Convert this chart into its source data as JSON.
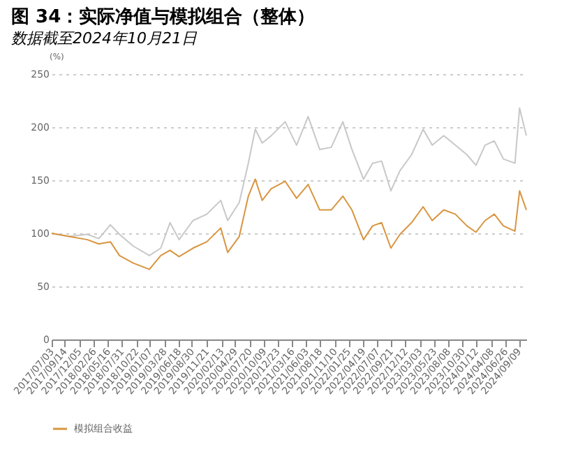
{
  "chart_data": {
    "type": "line",
    "title": "图 34：实际净值与模拟组合（整体）",
    "ylabel": "(%)",
    "x": [
      "2017-07-03",
      "2017-10-08",
      "2018-01-19",
      "2018-03-25",
      "2018-05-29",
      "2018-07-19",
      "2018-10-04",
      "2019-01-03",
      "2019-03-08",
      "2019-04-29",
      "2019-06-19",
      "2019-09-05",
      "2019-11-22",
      "2020-02-08",
      "2020-03-18",
      "2020-05-22",
      "2020-07-12",
      "2020-08-20",
      "2020-09-28",
      "2020-11-18",
      "2021-02-04",
      "2021-04-09",
      "2021-06-13",
      "2021-08-17",
      "2021-10-21",
      "2021-12-25",
      "2022-02-14",
      "2022-04-20",
      "2022-06-10",
      "2022-07-31",
      "2022-09-21",
      "2022-11-11",
      "2023-01-15",
      "2023-03-21",
      "2023-05-11",
      "2023-07-15",
      "2023-09-18",
      "2023-11-22",
      "2024-01-12",
      "2024-03-03",
      "2024-04-24",
      "2024-06-14",
      "2024-08-18",
      "2024-09-13",
      "2024-10-21"
    ],
    "series": [
      {
        "color": "#c8c8c8",
        "values": [
          100,
          97,
          99,
          95,
          108,
          99,
          88,
          79,
          86,
          110,
          94,
          112,
          118,
          131,
          112,
          129,
          166,
          198,
          185,
          192,
          205,
          183,
          210,
          179,
          181,
          205,
          179,
          151,
          166,
          168,
          140,
          159,
          174,
          198,
          183,
          192,
          183,
          174,
          164,
          183,
          187,
          170,
          166,
          218,
          192
        ]
      },
      {
        "name": "模拟组合收益",
        "color": "#d9953f",
        "values": [
          100,
          97,
          94,
          90,
          92,
          79,
          72,
          66,
          79,
          84,
          78,
          86,
          92,
          105,
          82,
          97,
          135,
          151,
          131,
          142,
          149,
          133,
          146,
          122,
          122,
          135,
          122,
          94,
          107,
          110,
          86,
          99,
          110,
          125,
          112,
          122,
          118,
          107,
          101,
          112,
          118,
          107,
          102,
          140,
          122
        ]
      }
    ],
    "xlim": [
      "2017-07-03",
      "2024-10-21"
    ],
    "xticks": [
      {
        "value": "2017-07-03",
        "label": "2017/07/03"
      },
      {
        "value": "2017-09-14",
        "label": "2017/09/14"
      },
      {
        "value": "2017-12-05",
        "label": "2017/12/05"
      },
      {
        "value": "2018-02-26",
        "label": "2018/02/26"
      },
      {
        "value": "2018-05-16",
        "label": "2018/05/16"
      },
      {
        "value": "2018-07-31",
        "label": "2018/07/31"
      },
      {
        "value": "2018-10-22",
        "label": "2018/10/22"
      },
      {
        "value": "2019-01-07",
        "label": "2019/01/07"
      },
      {
        "value": "2019-03-28",
        "label": "2019/03/28"
      },
      {
        "value": "2019-06-18",
        "label": "2019/06/18"
      },
      {
        "value": "2019-08-30",
        "label": "2019/08/30"
      },
      {
        "value": "2019-11-21",
        "label": "2019/11/21"
      },
      {
        "value": "2020-02-13",
        "label": "2020/02/13"
      },
      {
        "value": "2020-04-29",
        "label": "2020/04/29"
      },
      {
        "value": "2020-07-20",
        "label": "2020/07/20"
      },
      {
        "value": "2020-10-09",
        "label": "2020/10/09"
      },
      {
        "value": "2020-12-23",
        "label": "2020/12/23"
      },
      {
        "value": "2021-03-16",
        "label": "2021/03/16"
      },
      {
        "value": "2021-06-03",
        "label": "2021/06/03"
      },
      {
        "value": "2021-08-18",
        "label": "2021/08/18"
      },
      {
        "value": "2021-11-10",
        "label": "2021/11/10"
      },
      {
        "value": "2022-01-25",
        "label": "2022/01/25"
      },
      {
        "value": "2022-04-19",
        "label": "2022/04/19"
      },
      {
        "value": "2022-07-07",
        "label": "2022/07/07"
      },
      {
        "value": "2022-09-21",
        "label": "2022/09/21"
      },
      {
        "value": "2022-12-12",
        "label": "2022/12/12"
      },
      {
        "value": "2023-03-03",
        "label": "2023/03/03"
      },
      {
        "value": "2023-05-23",
        "label": "2023/05/23"
      },
      {
        "value": "2023-08-08",
        "label": "2023/08/08"
      },
      {
        "value": "2023-10-30",
        "label": "2023/10/30"
      },
      {
        "value": "2024-01-12",
        "label": "2024/01/12"
      },
      {
        "value": "2024-04-08",
        "label": "2024/04/08"
      },
      {
        "value": "2024-06-26",
        "label": "2024/06/26"
      },
      {
        "value": "2024-09-09",
        "label": "2024/09/09"
      }
    ],
    "ylim": [
      0,
      250
    ],
    "yticks": [
      0,
      50,
      100,
      150,
      200,
      250
    ],
    "grid": "y",
    "legend": "bottom",
    "marker": "none",
    "line_style": "solid",
    "annotations": [
      "数据截至2024年10月21日"
    ]
  }
}
